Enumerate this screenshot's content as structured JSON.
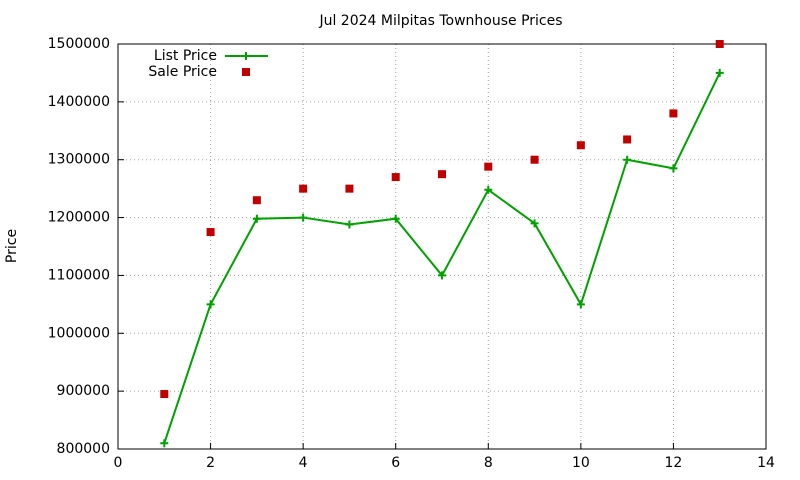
{
  "chart_data": {
    "type": "line",
    "title": "Jul 2024 Milpitas Townhouse Prices",
    "y_label": "Price",
    "x": [
      1,
      2,
      3,
      4,
      5,
      6,
      7,
      8,
      9,
      10,
      11,
      12,
      13
    ],
    "series": [
      {
        "name": "List Price",
        "color": "#00a000",
        "style": "linespoints",
        "values": [
          810000,
          1050000,
          1198000,
          1200000,
          1188000,
          1198000,
          1100000,
          1248000,
          1190000,
          1050000,
          1300000,
          1285000,
          1450000
        ]
      },
      {
        "name": "Sale Price",
        "color": "#c00000",
        "style": "points",
        "values": [
          895000,
          1175000,
          1230000,
          1250000,
          1250000,
          1270000,
          1275000,
          1288000,
          1300000,
          1325000,
          1335000,
          1380000,
          1500000
        ]
      }
    ],
    "xlim": [
      0,
      14
    ],
    "xticks": [
      0,
      2,
      4,
      6,
      8,
      10,
      12,
      14
    ],
    "ylim": [
      800000,
      1500000
    ],
    "yticks": [
      800000,
      900000,
      1000000,
      1100000,
      1200000,
      1300000,
      1400000,
      1500000
    ],
    "grid": true,
    "legend": "top-left"
  }
}
